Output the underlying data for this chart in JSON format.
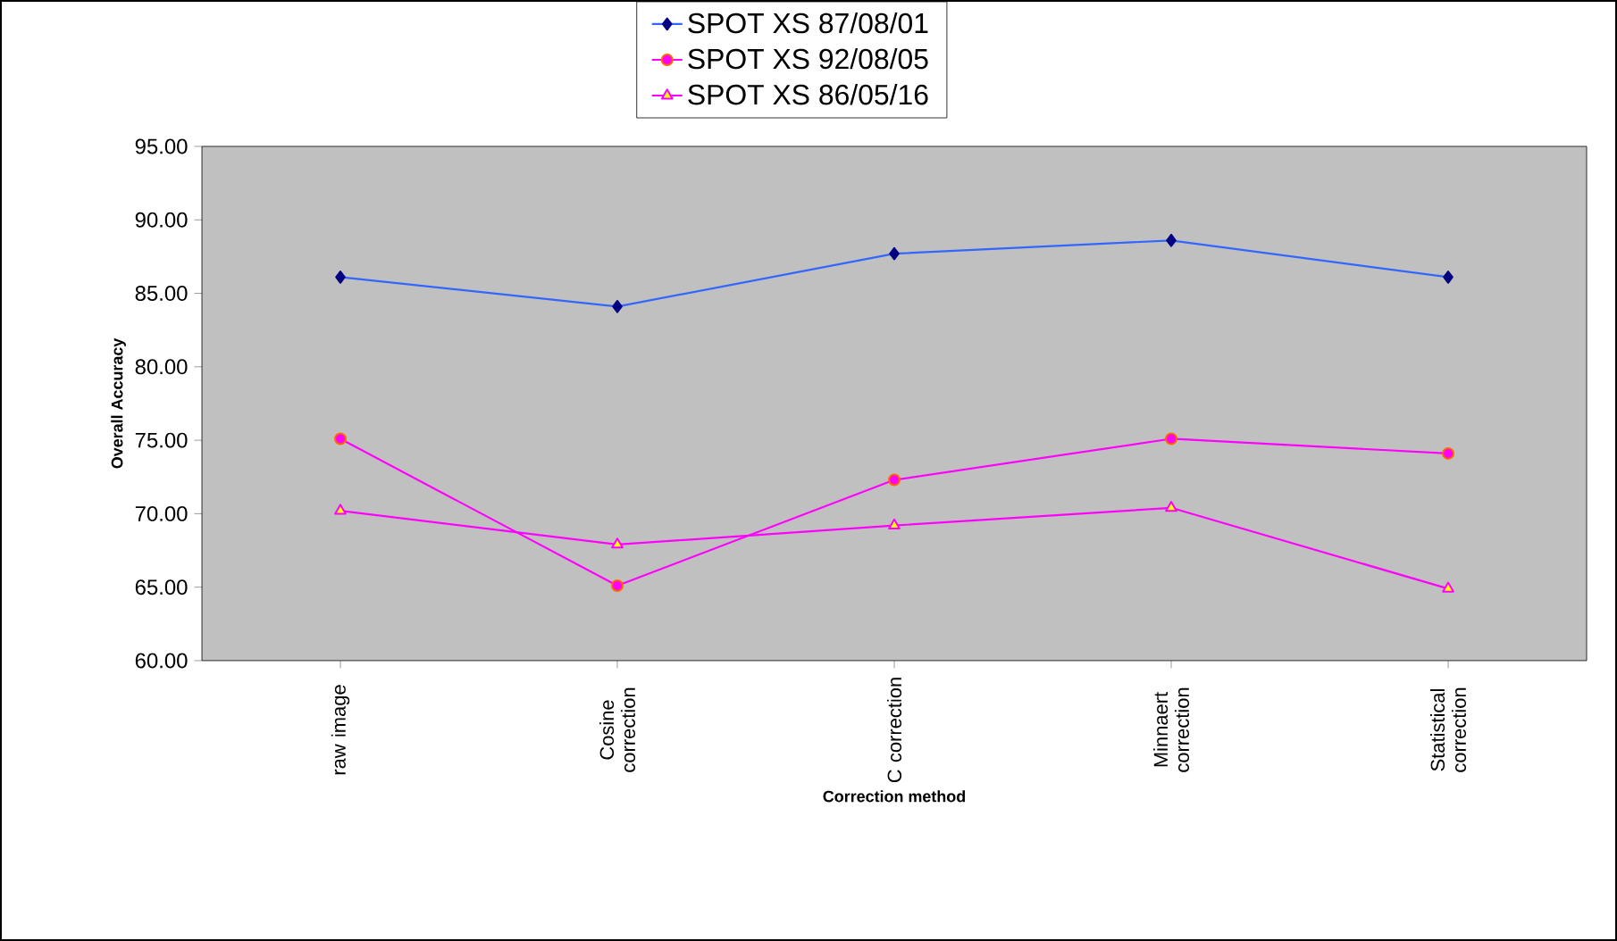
{
  "chart_data": {
    "type": "line",
    "xlabel": "Correction method",
    "ylabel": "Overall Accuracy",
    "categories": [
      "raw  image",
      "Cosine correction",
      "C correction",
      "Minnaert correction",
      "Statistical correction"
    ],
    "ylim": [
      60,
      95
    ],
    "yticks": [
      {
        "value": 60,
        "label": "60.00"
      },
      {
        "value": 65,
        "label": "65.00"
      },
      {
        "value": 70,
        "label": "70.00"
      },
      {
        "value": 75,
        "label": "75.00"
      },
      {
        "value": 80,
        "label": "80.00"
      },
      {
        "value": 85,
        "label": "85.00"
      },
      {
        "value": 90,
        "label": "90.00"
      },
      {
        "value": 95,
        "label": "95.00"
      }
    ],
    "series": [
      {
        "name": "SPOT XS 87/08/01",
        "color": "#3366ff",
        "marker": "diamond",
        "values": [
          86.1,
          84.1,
          87.7,
          88.6,
          86.1
        ]
      },
      {
        "name": "SPOT XS 92/08/05",
        "color": "#ff00ff",
        "marker": "circle",
        "values": [
          75.1,
          65.1,
          72.3,
          75.1,
          74.1
        ]
      },
      {
        "name": "SPOT XS 86/05/16",
        "color": "#ff00ff",
        "marker": "triangle",
        "values": [
          70.2,
          67.9,
          69.2,
          70.4,
          64.9
        ]
      }
    ],
    "grid": false,
    "legend": "top"
  }
}
